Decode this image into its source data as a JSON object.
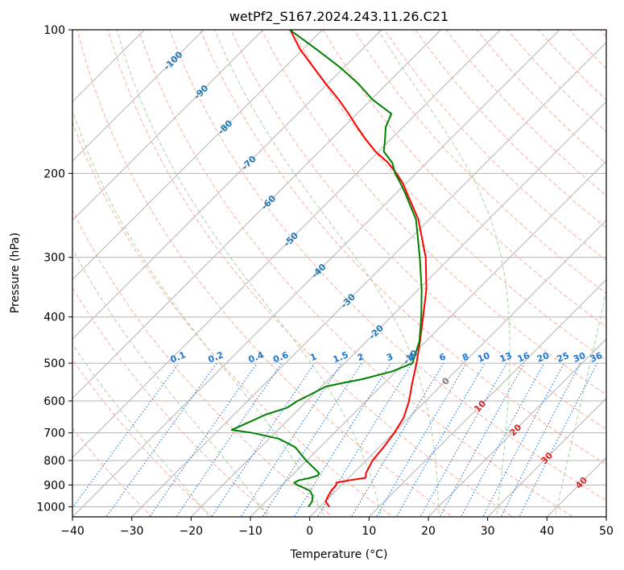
{
  "chart_data": {
    "type": "line",
    "title": "wetPf2_S167.2024.243.11.26.C21",
    "xlabel": "Temperature (°C)",
    "ylabel": "Pressure (hPa)",
    "xlim": [
      -40,
      50
    ],
    "ylim": [
      1050,
      100
    ],
    "y_scale": "log",
    "grid": true,
    "x_ticks": [
      "−40",
      "−30",
      "−20",
      "−10",
      "0",
      "10",
      "20",
      "30",
      "40",
      "50"
    ],
    "x_tick_values": [
      -40,
      -30,
      -20,
      -10,
      0,
      10,
      20,
      30,
      40,
      50
    ],
    "y_ticks": [
      "1000",
      "900",
      "800",
      "700",
      "600",
      "500",
      "400",
      "300",
      "200",
      "100"
    ],
    "y_tick_values": [
      1000,
      900,
      800,
      700,
      600,
      500,
      400,
      300,
      200,
      100
    ],
    "isotherms": [
      -110,
      -100,
      -90,
      -80,
      -70,
      -60,
      -50,
      -40,
      -30,
      -20,
      -10,
      0,
      10,
      20,
      30,
      40,
      50
    ],
    "dry_adiabats": [
      -30,
      -20,
      -10,
      0,
      10,
      20,
      30,
      40,
      50,
      60,
      70,
      80,
      90,
      100,
      110,
      120,
      130,
      140,
      150,
      160,
      170,
      180,
      190,
      200,
      210,
      220,
      230,
      240,
      250,
      260,
      270
    ],
    "moist_adiabats": [
      -20,
      -10,
      0,
      10,
      20,
      30,
      40
    ],
    "mixing_ratios": [
      0.1,
      0.2,
      0.4,
      0.6,
      1,
      1.5,
      2,
      3,
      4,
      6,
      8,
      10,
      13,
      16,
      20,
      25,
      30,
      36
    ],
    "mixing_ratio_labels": [
      "0.1",
      "0.2",
      "0.4",
      "0.6",
      "1",
      "1.5",
      "2",
      "3",
      "4",
      "6",
      "8",
      "10",
      "13",
      "16",
      "20",
      "25",
      "30",
      "36"
    ],
    "isotherm_labels": [
      {
        "text": "-100",
        "p": 116
      },
      {
        "text": "-90",
        "p": 135
      },
      {
        "text": "-80",
        "p": 160
      },
      {
        "text": "-70",
        "p": 190
      },
      {
        "text": "-60",
        "p": 230
      },
      {
        "text": "-50",
        "p": 275
      },
      {
        "text": "-40",
        "p": 320
      },
      {
        "text": "-30",
        "p": 370
      },
      {
        "text": "-20",
        "p": 430
      },
      {
        "text": "-10",
        "p": 485
      },
      {
        "text": "0",
        "p": 545
      },
      {
        "text": "10",
        "p": 615
      },
      {
        "text": "20",
        "p": 690
      },
      {
        "text": "30",
        "p": 790
      },
      {
        "text": "40",
        "p": 890
      }
    ],
    "series": [
      {
        "role": "temperature",
        "color": "#ff0000",
        "p": [
          1000,
          975,
          950,
          925,
          900,
          890,
          880,
          870,
          860,
          850,
          800,
          750,
          700,
          650,
          600,
          550,
          500,
          450,
          400,
          350,
          300,
          250,
          220,
          210,
          200,
          190,
          180,
          170,
          160,
          150,
          140,
          130,
          120,
          110,
          100
        ],
        "t": [
          1.6,
          0.1,
          -0.4,
          -0.8,
          -0.9,
          -1.3,
          0.5,
          2.8,
          2.5,
          2.1,
          1.1,
          0.7,
          0.1,
          -0.9,
          -2.8,
          -5.3,
          -7.9,
          -11,
          -14.6,
          -18.7,
          -24.2,
          -31.8,
          -38.2,
          -40.5,
          -43.3,
          -46.5,
          -50.5,
          -54.1,
          -57.7,
          -61.4,
          -65.5,
          -70.2,
          -75.1,
          -80.4,
          -85.4
        ]
      },
      {
        "role": "dewpoint",
        "color": "#008000",
        "p": [
          1000,
          975,
          950,
          925,
          900,
          890,
          880,
          870,
          860,
          850,
          800,
          750,
          720,
          700,
          690,
          660,
          640,
          620,
          600,
          580,
          560,
          550,
          540,
          520,
          500,
          450,
          400,
          350,
          300,
          250,
          220,
          210,
          200,
          190,
          180,
          170,
          160,
          150,
          140,
          130,
          120,
          110,
          100
        ],
        "t": [
          -1.9,
          -2.2,
          -3,
          -4.4,
          -7.5,
          -8.4,
          -8,
          -6.5,
          -5.6,
          -5.8,
          -10.1,
          -14.2,
          -18.4,
          -23.8,
          -27.8,
          -25.9,
          -24.6,
          -22.2,
          -21.6,
          -20.4,
          -19.3,
          -17,
          -14.3,
          -10.6,
          -8.6,
          -11.1,
          -14.9,
          -19.5,
          -25.2,
          -32.2,
          -38.5,
          -40.9,
          -43.5,
          -45.8,
          -49.1,
          -50.9,
          -52.9,
          -54.2,
          -59.8,
          -64.7,
          -70.6,
          -77.6,
          -85.5
        ]
      }
    ]
  },
  "colors": {
    "temperature": "#ff0000",
    "dewpoint": "#008000",
    "isotherm": "#b3b3b3",
    "dry_adiabat": "#fbae9a",
    "moist_adiabat": "#a8d5a2",
    "mixing_ratio": "#1f77d4",
    "isotherm_label": "#1f77b4",
    "isotherm_label_warm": "#d62728",
    "isotherm_label_zero": "#808080"
  }
}
